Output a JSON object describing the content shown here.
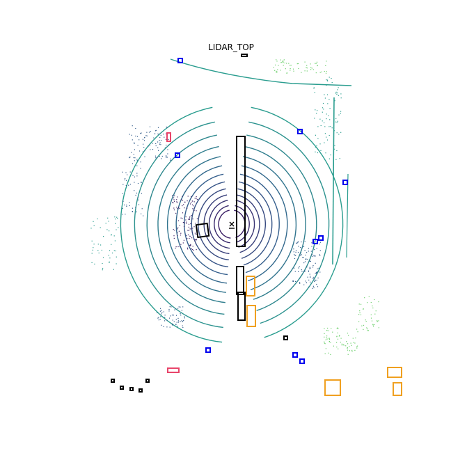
{
  "figure": {
    "title": "LIDAR_TOP"
  },
  "legend_colors": {
    "ring_near": "#3b1f66",
    "ring_mid": "#355f8d",
    "ring_far": "#2a9d8f",
    "ring_outer": "#6ccf6b",
    "car_box": "#000000",
    "pedestrian_box": "#0000ee",
    "barrier_box": "#f0a020",
    "bicycle_box": "#e8456a"
  },
  "ego_marker": "x"
}
